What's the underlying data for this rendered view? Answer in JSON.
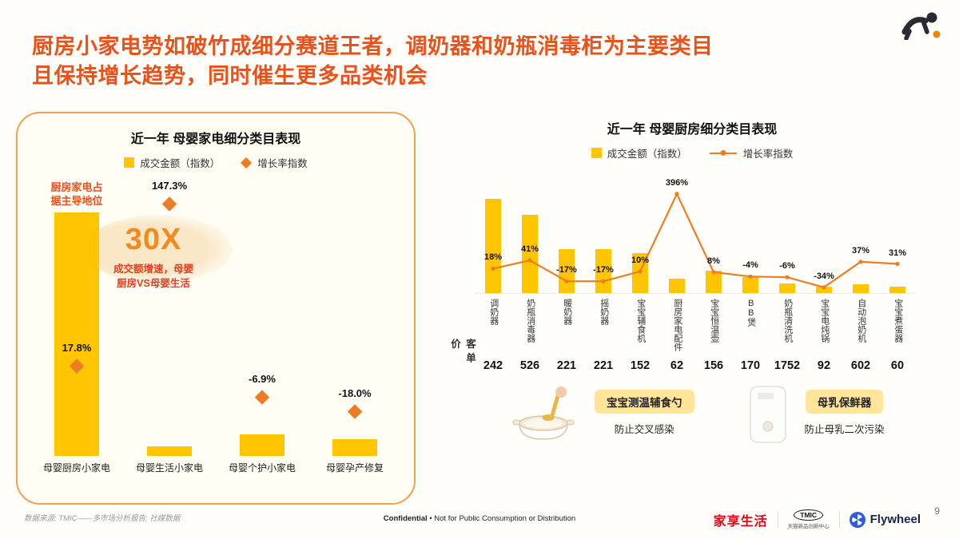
{
  "page": {
    "title_line1": "厨房小家电势如破竹成细分赛道王者，调奶器和奶瓶消毒柜为主要类目",
    "title_line2": "且保持增长趋势，同时催生更多品类机会",
    "page_number": "9"
  },
  "colors": {
    "bar_yellow": "#FFC600",
    "growth_orange": "#ED7D22",
    "title_red": "#E8531C",
    "brand_red": "#E60113",
    "flywheel_blue": "#2E5BE6"
  },
  "left_panel": {
    "chart_title": "近一年 母婴家电细分类目表现",
    "legend": {
      "bar": "成交金额（指数）",
      "diamond": "增长率指数"
    },
    "annotation": "厨房家电占据主导地位",
    "highlight": {
      "big": "30X",
      "desc_line1": "成交额增速，母婴",
      "desc_line2": "厨房VS母婴生活"
    }
  },
  "right_panel": {
    "chart_title": "近一年 母婴厨房细分类目表现",
    "legend": {
      "bar": "成交金额（指数）",
      "line": "增长率指数"
    },
    "price_label": "客单价",
    "callouts": [
      {
        "name": "宝宝测温辅食勺",
        "desc": "防止交叉感染"
      },
      {
        "name": "母乳保鲜器",
        "desc": "防止母乳二次污染"
      }
    ]
  },
  "footer": {
    "source": "数据来源: TMIC——多市场分析报告; 社媒数据",
    "confidential_bold": "Confidential",
    "confidential_rest": " • Not for Public Consumption or Distribution",
    "brand_left": "家享生活",
    "tmic": "TMIC",
    "tmic_sub": "天猫新品创新中心",
    "flywheel": "Flywheel"
  },
  "chart_data": [
    {
      "type": "bar",
      "title": "近一年 母婴家电细分类目表现",
      "categories": [
        "母婴厨房小家电",
        "母婴生活小家电",
        "母婴个护小家电",
        "母婴孕产修复"
      ],
      "series": [
        {
          "name": "成交金额（指数）",
          "type": "bar",
          "values": [
            100,
            4,
            9,
            7
          ]
        },
        {
          "name": "增长率指数",
          "type": "scatter",
          "values": [
            17.8,
            147.3,
            -6.9,
            -18.0
          ],
          "labels": [
            "17.8%",
            "147.3%",
            "-6.9%",
            "-18.0%"
          ]
        }
      ],
      "bar_axis_range": [
        0,
        100
      ],
      "growth_axis_range": [
        -45,
        165
      ],
      "legend_position": "top",
      "annotation": "厨房家电占据主导地位",
      "callout": "30X 成交额增速，母婴厨房VS母婴生活"
    },
    {
      "type": "bar+line",
      "title": "近一年 母婴厨房细分类目表现",
      "categories": [
        "调奶器",
        "奶瓶消毒器",
        "暖奶器",
        "摇奶器",
        "宝宝辅食机",
        "厨房家电配件",
        "宝宝恒温壶",
        "BB煲",
        "奶瓶清洗机",
        "宝宝电炖锅",
        "自动泡奶机",
        "宝宝煮蛋器"
      ],
      "series": [
        {
          "name": "成交金额（指数）",
          "type": "bar",
          "values": [
            100,
            83,
            47,
            47,
            42,
            15,
            24,
            17,
            10,
            7,
            9,
            7
          ]
        },
        {
          "name": "增长率指数",
          "type": "line",
          "values": [
            18,
            41,
            -17,
            -17,
            10,
            396,
            8,
            -4,
            -6,
            -34,
            37,
            31
          ],
          "labels": [
            "18%",
            "41%",
            "-17%",
            "-17%",
            "10%",
            "396%",
            "8%",
            "-4%",
            "-6%",
            "-34%",
            "37%",
            "31%"
          ]
        }
      ],
      "bar_axis_range": [
        0,
        100
      ],
      "growth_axis_range": [
        -40,
        400
      ],
      "legend_position": "top",
      "price_row": {
        "label": "客单价",
        "values": [
          242,
          526,
          221,
          221,
          152,
          62,
          156,
          170,
          1752,
          92,
          602,
          60
        ]
      }
    }
  ]
}
